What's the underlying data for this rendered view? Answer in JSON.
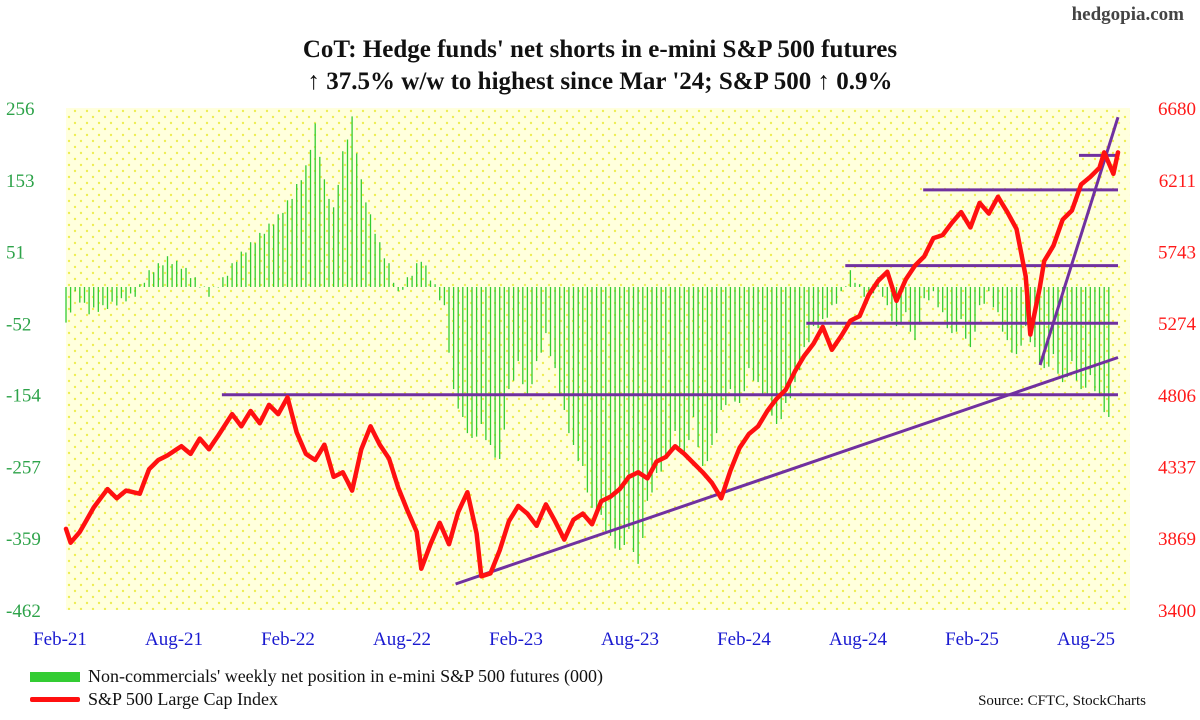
{
  "brand": "hedgopia.com",
  "title_line_1": "CoT: Hedge funds' net shorts in e-mini S&P 500 futures",
  "title_line_2": "↑ 37.5% w/w to highest since Mar '24; S&P 500 ↑ 0.9%",
  "legend": {
    "bars_label": "Non-commercials' weekly net position in e-mini S&P 500 futures (000)",
    "line_label": "S&P 500 Large Cap Index"
  },
  "source": "Source: CFTC, StockCharts",
  "colors": {
    "bars": "#33cc33",
    "line": "#ff1010",
    "trendlines": "#7030a0",
    "plot_background": "#ffffdd",
    "dots": "#f2f266",
    "left_axis_text": "#2ea34a",
    "right_axis_text": "#ff1a1a"
  },
  "chart_data": {
    "type": "bar+line",
    "x_ticks": [
      "Feb-21",
      "Aug-21",
      "Feb-22",
      "Aug-22",
      "Feb-23",
      "Aug-23",
      "Feb-24",
      "Aug-24",
      "Feb-25",
      "Aug-25"
    ],
    "x_range": [
      "2021-02",
      "2025-08"
    ],
    "left_axis": {
      "ticks": [
        256,
        153,
        51,
        -52,
        -154,
        -257,
        -359,
        -462
      ],
      "ylim": [
        -462,
        256
      ]
    },
    "right_axis": {
      "ticks": [
        6680,
        6211,
        5743,
        5274,
        4806,
        4337,
        3869,
        3400
      ],
      "ylim": [
        3400,
        6680
      ]
    },
    "bar_series": {
      "name": "Non-commercials' weekly net position in e-mini S&P 500 futures (000)",
      "anchors": [
        [
          0,
          -55
        ],
        [
          2,
          -10
        ],
        [
          5,
          -35
        ],
        [
          8,
          -30
        ],
        [
          12,
          -20
        ],
        [
          15,
          -10
        ],
        [
          18,
          20
        ],
        [
          22,
          40
        ],
        [
          25,
          30
        ],
        [
          28,
          10
        ],
        [
          31,
          -10
        ],
        [
          34,
          10
        ],
        [
          37,
          40
        ],
        [
          40,
          60
        ],
        [
          43,
          80
        ],
        [
          46,
          100
        ],
        [
          49,
          130
        ],
        [
          52,
          170
        ],
        [
          54,
          230
        ],
        [
          56,
          150
        ],
        [
          58,
          110
        ],
        [
          60,
          190
        ],
        [
          62,
          240
        ],
        [
          64,
          150
        ],
        [
          66,
          100
        ],
        [
          68,
          60
        ],
        [
          70,
          30
        ],
        [
          72,
          -10
        ],
        [
          74,
          10
        ],
        [
          77,
          40
        ],
        [
          80,
          0
        ],
        [
          82,
          -30
        ],
        [
          84,
          -150
        ],
        [
          86,
          -190
        ],
        [
          88,
          -220
        ],
        [
          90,
          -200
        ],
        [
          92,
          -230
        ],
        [
          94,
          -250
        ],
        [
          96,
          -150
        ],
        [
          98,
          -110
        ],
        [
          100,
          -160
        ],
        [
          102,
          -110
        ],
        [
          104,
          -70
        ],
        [
          106,
          -120
        ],
        [
          108,
          -180
        ],
        [
          110,
          -230
        ],
        [
          112,
          -260
        ],
        [
          114,
          -320
        ],
        [
          116,
          -330
        ],
        [
          118,
          -360
        ],
        [
          120,
          -380
        ],
        [
          122,
          -350
        ],
        [
          124,
          -400
        ],
        [
          126,
          -310
        ],
        [
          128,
          -270
        ],
        [
          130,
          -250
        ],
        [
          132,
          -210
        ],
        [
          134,
          -240
        ],
        [
          136,
          -190
        ],
        [
          138,
          -260
        ],
        [
          140,
          -230
        ],
        [
          142,
          -180
        ],
        [
          144,
          -150
        ],
        [
          146,
          -170
        ],
        [
          148,
          -120
        ],
        [
          150,
          -140
        ],
        [
          152,
          -160
        ],
        [
          154,
          -200
        ],
        [
          156,
          -170
        ],
        [
          158,
          -140
        ],
        [
          160,
          -90
        ],
        [
          162,
          -60
        ],
        [
          164,
          -50
        ],
        [
          166,
          -30
        ],
        [
          168,
          -10
        ],
        [
          170,
          20
        ],
        [
          172,
          0
        ],
        [
          174,
          -20
        ],
        [
          176,
          10
        ],
        [
          178,
          -30
        ],
        [
          180,
          -60
        ],
        [
          182,
          -40
        ],
        [
          184,
          -80
        ],
        [
          186,
          -20
        ],
        [
          188,
          -10
        ],
        [
          190,
          -40
        ],
        [
          192,
          -70
        ],
        [
          194,
          -50
        ],
        [
          196,
          -90
        ],
        [
          198,
          -30
        ],
        [
          200,
          -10
        ],
        [
          202,
          -40
        ],
        [
          204,
          -80
        ],
        [
          206,
          -100
        ],
        [
          208,
          -60
        ],
        [
          210,
          -90
        ],
        [
          212,
          -120
        ],
        [
          214,
          -100
        ],
        [
          216,
          -140
        ],
        [
          218,
          -110
        ],
        [
          220,
          -150
        ],
        [
          222,
          -130
        ],
        [
          224,
          -160
        ],
        [
          226,
          -190
        ]
      ]
    },
    "line_series": {
      "name": "S&P 500 Large Cap Index",
      "anchors": [
        [
          0,
          3930
        ],
        [
          1,
          3840
        ],
        [
          3,
          3910
        ],
        [
          6,
          4070
        ],
        [
          9,
          4190
        ],
        [
          11,
          4130
        ],
        [
          13,
          4180
        ],
        [
          16,
          4160
        ],
        [
          18,
          4320
        ],
        [
          20,
          4380
        ],
        [
          22,
          4410
        ],
        [
          25,
          4470
        ],
        [
          27,
          4420
        ],
        [
          29,
          4520
        ],
        [
          31,
          4450
        ],
        [
          33,
          4540
        ],
        [
          36,
          4680
        ],
        [
          38,
          4600
        ],
        [
          40,
          4700
        ],
        [
          42,
          4620
        ],
        [
          44,
          4740
        ],
        [
          46,
          4680
        ],
        [
          48,
          4790
        ],
        [
          50,
          4560
        ],
        [
          52,
          4420
        ],
        [
          54,
          4380
        ],
        [
          56,
          4480
        ],
        [
          58,
          4270
        ],
        [
          60,
          4300
        ],
        [
          62,
          4180
        ],
        [
          64,
          4450
        ],
        [
          66,
          4600
        ],
        [
          68,
          4480
        ],
        [
          70,
          4390
        ],
        [
          72,
          4200
        ],
        [
          74,
          4050
        ],
        [
          76,
          3910
        ],
        [
          77,
          3670
        ],
        [
          79,
          3830
        ],
        [
          81,
          3970
        ],
        [
          83,
          3830
        ],
        [
          85,
          4040
        ],
        [
          87,
          4170
        ],
        [
          89,
          3900
        ],
        [
          90,
          3620
        ],
        [
          92,
          3640
        ],
        [
          94,
          3790
        ],
        [
          96,
          3980
        ],
        [
          98,
          4080
        ],
        [
          100,
          4030
        ],
        [
          102,
          3950
        ],
        [
          104,
          4090
        ],
        [
          106,
          3980
        ],
        [
          108,
          3860
        ],
        [
          110,
          3990
        ],
        [
          112,
          4030
        ],
        [
          114,
          3960
        ],
        [
          116,
          4110
        ],
        [
          118,
          4140
        ],
        [
          120,
          4190
        ],
        [
          122,
          4270
        ],
        [
          124,
          4300
        ],
        [
          126,
          4260
        ],
        [
          128,
          4370
        ],
        [
          130,
          4400
        ],
        [
          132,
          4470
        ],
        [
          134,
          4420
        ],
        [
          136,
          4360
        ],
        [
          138,
          4300
        ],
        [
          140,
          4230
        ],
        [
          142,
          4130
        ],
        [
          144,
          4310
        ],
        [
          146,
          4460
        ],
        [
          148,
          4550
        ],
        [
          150,
          4600
        ],
        [
          152,
          4700
        ],
        [
          154,
          4780
        ],
        [
          156,
          4840
        ],
        [
          158,
          4960
        ],
        [
          160,
          5060
        ],
        [
          162,
          5140
        ],
        [
          164,
          5250
        ],
        [
          166,
          5100
        ],
        [
          168,
          5190
        ],
        [
          170,
          5290
        ],
        [
          172,
          5320
        ],
        [
          174,
          5460
        ],
        [
          176,
          5550
        ],
        [
          178,
          5610
        ],
        [
          180,
          5420
        ],
        [
          182,
          5560
        ],
        [
          184,
          5650
        ],
        [
          186,
          5710
        ],
        [
          188,
          5830
        ],
        [
          190,
          5850
        ],
        [
          192,
          5930
        ],
        [
          194,
          6000
        ],
        [
          196,
          5900
        ],
        [
          198,
          6060
        ],
        [
          200,
          5990
        ],
        [
          202,
          6100
        ],
        [
          204,
          6000
        ],
        [
          206,
          5890
        ],
        [
          208,
          5580
        ],
        [
          209,
          5200
        ],
        [
          211,
          5500
        ],
        [
          212,
          5680
        ],
        [
          214,
          5780
        ],
        [
          216,
          5950
        ],
        [
          218,
          6010
        ],
        [
          220,
          6180
        ],
        [
          222,
          6230
        ],
        [
          224,
          6290
        ],
        [
          225,
          6390
        ],
        [
          227,
          6250
        ],
        [
          228,
          6390
        ]
      ]
    },
    "trendlines": [
      {
        "from": [
          "2021-10",
          4806
        ],
        "to": [
          "2025-08",
          4806
        ]
      },
      {
        "from": [
          "2024-04",
          5274
        ],
        "to": [
          "2025-08",
          5274
        ]
      },
      {
        "from": [
          "2024-06",
          5650
        ],
        "to": [
          "2025-08",
          5650
        ]
      },
      {
        "from": [
          "2024-10",
          6145
        ],
        "to": [
          "2025-08",
          6145
        ]
      },
      {
        "from": [
          "2025-06",
          6370
        ],
        "to": [
          "2025-08",
          6370
        ]
      },
      {
        "from": [
          "2022-10",
          3570
        ],
        "to": [
          "2025-08",
          5050
        ]
      },
      {
        "from": [
          "2025-04",
          5000
        ],
        "to": [
          "2025-08",
          6620
        ]
      }
    ]
  }
}
